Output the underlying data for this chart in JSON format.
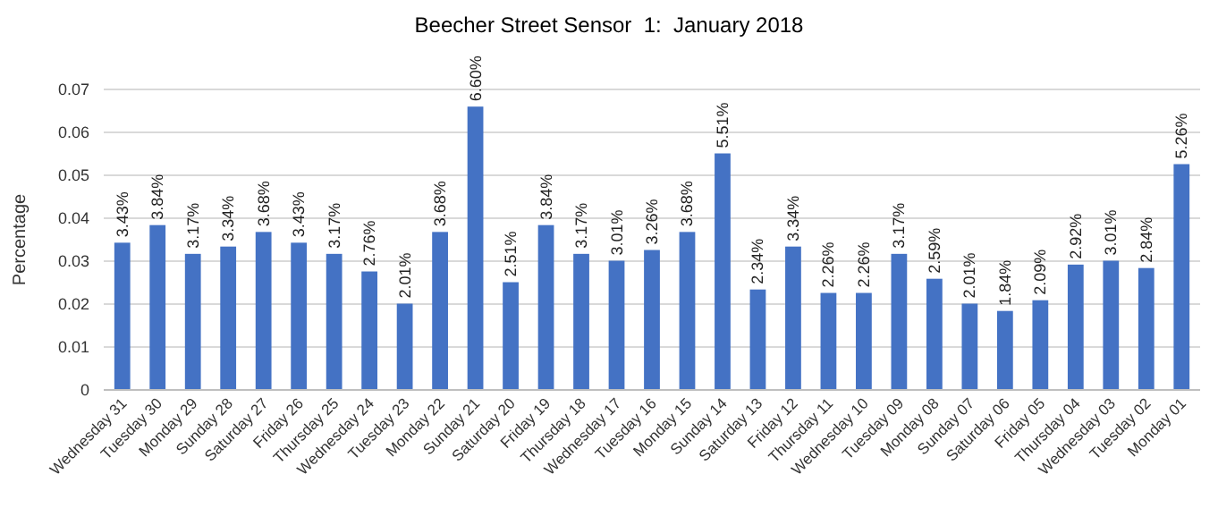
{
  "chart_data": {
    "type": "bar",
    "title": "Beecher Street Sensor  1:  January 2018",
    "ylabel": "Percentage",
    "categories": [
      "Wednesday 31",
      "Tuesday 30",
      "Monday 29",
      "Sunday 28",
      "Saturday 27",
      "Friday 26",
      "Thursday 25",
      "Wednesday 24",
      "Tuesday 23",
      "Monday 22",
      "Sunday 21",
      "Saturday 20",
      "Friday 19",
      "Thursday 18",
      "Wednesday 17",
      "Tuesday 16",
      "Monday 15",
      "Sunday 14",
      "Saturday 13",
      "Friday 12",
      "Thursday 11",
      "Wednesday 10",
      "Tuesday 09",
      "Monday 08",
      "Sunday 07",
      "Saturday 06",
      "Friday 05",
      "Thursday 04",
      "Wednesday 03",
      "Tuesday 02",
      "Monday 01"
    ],
    "values": [
      0.0343,
      0.0384,
      0.0317,
      0.0334,
      0.0368,
      0.0343,
      0.0317,
      0.0276,
      0.0201,
      0.0368,
      0.066,
      0.0251,
      0.0384,
      0.0317,
      0.0301,
      0.0326,
      0.0368,
      0.0551,
      0.0234,
      0.0334,
      0.0226,
      0.0226,
      0.0317,
      0.0259,
      0.0201,
      0.0184,
      0.0209,
      0.0292,
      0.0301,
      0.0284,
      0.0526
    ],
    "value_labels": [
      "3.43%",
      "3.84%",
      "3.17%",
      "3.34%",
      "3.68%",
      "3.43%",
      "3.17%",
      "2.76%",
      "2.01%",
      "3.68%",
      "6.60%",
      "2.51%",
      "3.84%",
      "3.17%",
      "3.01%",
      "3.26%",
      "3.68%",
      "5.51%",
      "2.34%",
      "3.34%",
      "2.26%",
      "2.26%",
      "3.17%",
      "2.59%",
      "2.01%",
      "1.84%",
      "2.09%",
      "2.92%",
      "3.01%",
      "2.84%",
      "5.26%"
    ],
    "color": "#4472c4",
    "ylim": [
      0,
      0.07
    ],
    "yticks": [
      0,
      0.01,
      0.02,
      0.03,
      0.04,
      0.05,
      0.06,
      0.07
    ],
    "grid": "y"
  }
}
